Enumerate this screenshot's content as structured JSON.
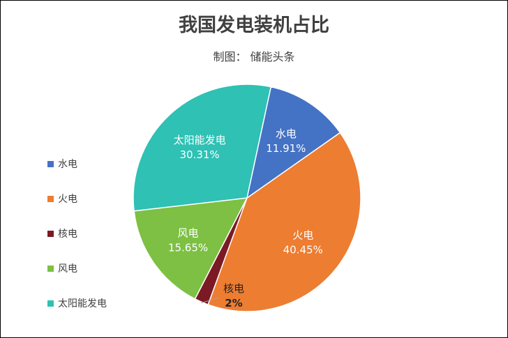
{
  "title": "我国发电装机占比",
  "subtitle": "制图： 储能头条",
  "chart_data": {
    "type": "pie",
    "start_angle_deg": -35.1,
    "direction": "clockwise",
    "categories": [
      "火电",
      "核电",
      "风电",
      "太阳能发电",
      "水电"
    ],
    "values": [
      40.45,
      2,
      15.65,
      30.31,
      11.91
    ],
    "value_labels": [
      "40.45%",
      "2%",
      "15.65%",
      "30.31%",
      "11.91%"
    ],
    "colors": [
      "#ED7D31",
      "#7B1A24",
      "#7DC044",
      "#2EC1B4",
      "#4472C4"
    ],
    "label_colors": [
      "#ffffff",
      "#222222",
      "#ffffff",
      "#ffffff",
      "#ffffff"
    ],
    "legend_position": "left",
    "legend": [
      {
        "label": "水电",
        "color": "#4472C4"
      },
      {
        "label": "火电",
        "color": "#ED7D31"
      },
      {
        "label": "核电",
        "color": "#7B1A24"
      },
      {
        "label": "风电",
        "color": "#7DC044"
      },
      {
        "label": "太阳能发电",
        "color": "#2EC1B4"
      }
    ]
  }
}
